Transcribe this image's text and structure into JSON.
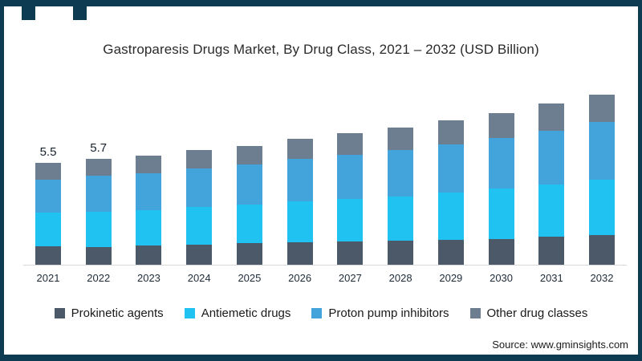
{
  "page": {
    "background": "#ffffff",
    "border_color": "#0d3c52"
  },
  "chart_data": {
    "type": "bar",
    "stacked": true,
    "title": "Gastroparesis Drugs Market, By Drug Class, 2021 – 2032 (USD Billion)",
    "unit": "USD Billion",
    "categories": [
      "2021",
      "2022",
      "2023",
      "2024",
      "2025",
      "2026",
      "2027",
      "2028",
      "2029",
      "2030",
      "2031",
      "2032"
    ],
    "series": [
      {
        "name": "Prokinetic agents",
        "color": "#4b5969",
        "values": [
          1.0,
          0.95,
          1.05,
          1.1,
          1.15,
          1.2,
          1.25,
          1.3,
          1.35,
          1.4,
          1.5,
          1.6
        ]
      },
      {
        "name": "Antiemetic drugs",
        "color": "#20c2f2",
        "values": [
          1.8,
          1.9,
          1.9,
          2.0,
          2.1,
          2.2,
          2.3,
          2.4,
          2.55,
          2.7,
          2.85,
          3.0
        ]
      },
      {
        "name": "Proton pump inhibitors",
        "color": "#42a4db",
        "values": [
          1.8,
          1.95,
          2.0,
          2.1,
          2.15,
          2.3,
          2.4,
          2.5,
          2.6,
          2.75,
          2.9,
          3.1
        ]
      },
      {
        "name": "Other drug classes",
        "color": "#6d7e91",
        "values": [
          0.9,
          0.9,
          0.95,
          1.0,
          1.0,
          1.1,
          1.15,
          1.2,
          1.3,
          1.35,
          1.45,
          1.5
        ]
      }
    ],
    "totals": [
      5.5,
      5.7,
      5.9,
      6.2,
      6.4,
      6.8,
      7.1,
      7.4,
      7.8,
      8.2,
      8.7,
      9.2
    ],
    "data_labels": {
      "2021": "5.5",
      "2022": "5.7"
    },
    "ylim": [
      0,
      9.8
    ],
    "grid": false,
    "axis_line_color": "#d9d9d9",
    "legend_position": "bottom",
    "xlabel": "",
    "ylabel": ""
  },
  "source": {
    "label": "Source: www.gminsights.com"
  }
}
